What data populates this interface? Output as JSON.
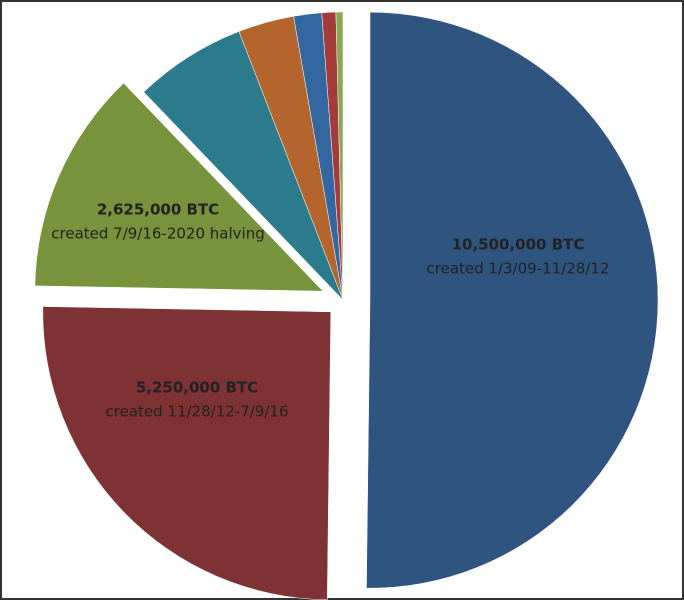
{
  "chart_data": {
    "type": "pie",
    "categories": [
      "created 1/3/09-11/28/12",
      "created 11/28/12-7/9/16",
      "created 7/9/16-2020 halving",
      null,
      null,
      null,
      null,
      null
    ],
    "values": [
      10500000,
      5250000,
      2625000,
      1312500,
      656250,
      328125,
      164062.5,
      82031.25
    ],
    "value_labels": [
      "10,500,000 BTC",
      "5,250,000 BTC",
      "2,625,000 BTC",
      null,
      null,
      null,
      null,
      null
    ],
    "colors": [
      "#2f5480",
      "#7f3233",
      "#77933c",
      "#2b7b8c",
      "#b4652e",
      "#3466a0",
      "#a53a3a",
      "#89a850"
    ]
  }
}
